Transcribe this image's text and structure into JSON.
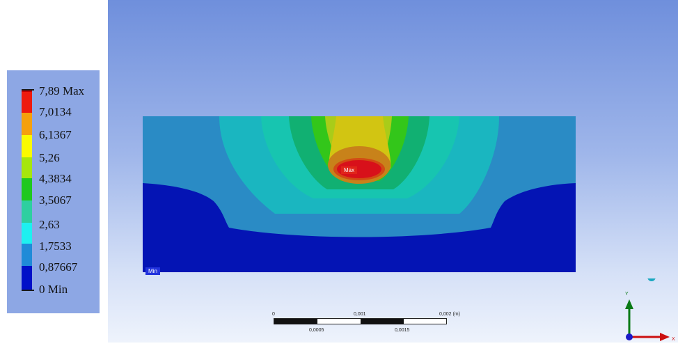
{
  "legend": {
    "entries": [
      {
        "label": "7,89 Max",
        "color": "#c00000"
      },
      {
        "label": "7,0134",
        "color": "#ee1a0e"
      },
      {
        "label": "6,1367",
        "color": "#f5a00c"
      },
      {
        "label": "5,26",
        "color": "#fafa00"
      },
      {
        "label": "4,3834",
        "color": "#a6e60c"
      },
      {
        "label": "3,5067",
        "color": "#1fc81f"
      },
      {
        "label": "2,63",
        "color": "#2ecfa0"
      },
      {
        "label": "1,7533",
        "color": "#1ef0f0"
      },
      {
        "label": "0,87667",
        "color": "#1f8bd8"
      },
      {
        "label": "0 Min",
        "color": "#0010c8"
      }
    ]
  },
  "model": {
    "max_tag": "Max",
    "min_tag": "Min",
    "colors": {
      "band_outer": "#2a8bc5",
      "band_1": "#1ab6c0",
      "band_2": "#17c5b0",
      "band_3": "#11b072",
      "band_4": "#33c61a",
      "band_5": "#a9cc19",
      "band_6": "#d2c512",
      "band_7": "#c8821a",
      "band_8": "#d24a14",
      "band_max": "#d8101a",
      "base": "#0414b4"
    }
  },
  "scale_bar": {
    "top_labels": [
      "0",
      "0,001",
      "0,002 (m)"
    ],
    "bottom_labels": [
      "0,0005",
      "0,0015"
    ]
  },
  "triad": {
    "y_label": "Y",
    "x_label": "X",
    "colors": {
      "y_axis": "#0a7a16",
      "x_axis": "#cc0f0f",
      "origin": "#1a1ac8",
      "sphere": "#1aa8c0"
    }
  }
}
